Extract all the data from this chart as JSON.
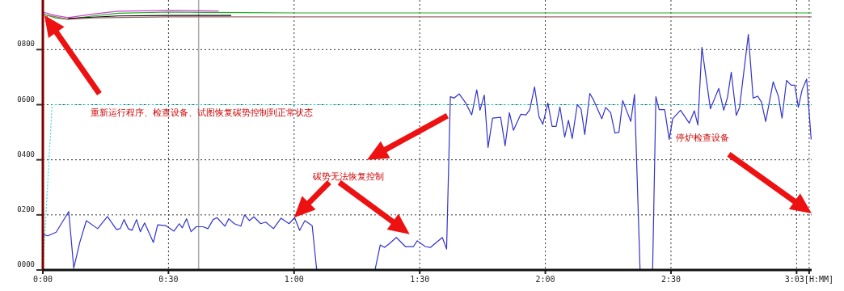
{
  "chart_data": {
    "type": "line",
    "xlim": [
      0,
      3.06
    ],
    "ylim": [
      0,
      980
    ],
    "xticks": [
      {
        "value": 0,
        "label": "0:00"
      },
      {
        "value": 0.5,
        "label": "0:30"
      },
      {
        "value": 1,
        "label": "1:00"
      },
      {
        "value": 1.5,
        "label": "1:30"
      },
      {
        "value": 2,
        "label": "2:00"
      },
      {
        "value": 2.5,
        "label": "2:30"
      },
      {
        "value": 3,
        "label": null
      },
      {
        "value": 3.05,
        "label": "3:03[H:MM]"
      }
    ],
    "yticks": [
      {
        "value": 0,
        "label": "0000"
      },
      {
        "value": 200,
        "label": "0200"
      },
      {
        "value": 400,
        "label": "0400"
      },
      {
        "value": 600,
        "label": "0600"
      },
      {
        "value": 800,
        "label": "0800"
      }
    ],
    "grid": true,
    "series": [
      {
        "color": "#22aa22",
        "x": [
          0,
          0.05,
          0.1,
          0.2,
          0.3,
          0.5,
          0.8,
          1.0,
          3.06
        ],
        "values": [
          930,
          915,
          910,
          922,
          932,
          936,
          934,
          933,
          933
        ]
      },
      {
        "color": "#cc44cc",
        "x": [
          0,
          0.05,
          0.1,
          0.2,
          0.3,
          0.5,
          0.7
        ],
        "values": [
          936,
          924,
          916,
          929,
          939,
          942,
          940
        ]
      },
      {
        "color": "#000000",
        "x": [
          0.1,
          0.3,
          0.5,
          0.75
        ],
        "values": [
          913,
          922,
          924,
          924
        ]
      },
      {
        "color": "#996666",
        "x": [
          0.01,
          0.02,
          0.1,
          0.2,
          0.5,
          1,
          3.06
        ],
        "values": [
          900,
          925,
          910,
          915,
          919,
          919,
          919
        ]
      },
      {
        "color": "#33dddd",
        "line_style": "dotted",
        "x": [
          0,
          0.037,
          3.06
        ],
        "values": [
          0,
          600,
          600
        ]
      },
      {
        "color": "#3333cc",
        "x": [
          0,
          0.02,
          0.053,
          0.103,
          0.123,
          0.147,
          0.173,
          0.218,
          0.257,
          0.293,
          0.308,
          0.323,
          0.34,
          0.355,
          0.373,
          0.388,
          0.405,
          0.44,
          0.457,
          0.49,
          0.522,
          0.543,
          0.555,
          0.572,
          0.59,
          0.61,
          0.637,
          0.657,
          0.678,
          0.693,
          0.725,
          0.74,
          0.762,
          0.788,
          0.803,
          0.822,
          0.84,
          0.867,
          0.887,
          0.918,
          0.948,
          0.98,
          1.002,
          1.022,
          1.043,
          1.072,
          1.09,
          1.322,
          1.343,
          1.36,
          1.377,
          1.407,
          1.443,
          1.475,
          1.49,
          1.522,
          1.543,
          1.59,
          1.607,
          1.622,
          1.637,
          1.657,
          1.683,
          1.707,
          1.727,
          1.74,
          1.757,
          1.772,
          1.79,
          1.822,
          1.84,
          1.857,
          1.873,
          1.902,
          1.923,
          1.938,
          1.957,
          1.975,
          1.99,
          2.01,
          2.027,
          2.043,
          2.058,
          2.077,
          2.092,
          2.107,
          2.127,
          2.142,
          2.157,
          2.177,
          2.193,
          2.225,
          2.24,
          2.26,
          2.277,
          2.293,
          2.308,
          2.34,
          2.355,
          2.377,
          2.427,
          2.44,
          2.453,
          2.475,
          2.493,
          2.507,
          2.538,
          2.573,
          2.593,
          2.607,
          2.623,
          2.657,
          2.69,
          2.71,
          2.725,
          2.74,
          2.76,
          2.773,
          2.808,
          2.827,
          2.845,
          2.86,
          2.877,
          2.907,
          2.928,
          2.942,
          2.96,
          2.978,
          2.993,
          3.007,
          3.022,
          3.04,
          3.058
        ],
        "values": [
          129,
          124,
          137,
          212,
          7,
          100,
          179,
          150,
          194,
          147,
          150,
          183,
          150,
          144,
          183,
          139,
          171,
          100,
          164,
          161,
          141,
          168,
          153,
          186,
          139,
          157,
          157,
          150,
          183,
          190,
          159,
          186,
          168,
          159,
          200,
          179,
          193,
          168,
          174,
          150,
          188,
          168,
          190,
          144,
          179,
          161,
          0,
          0,
          91,
          82,
          94,
          118,
          85,
          85,
          106,
          85,
          82,
          118,
          76,
          629,
          624,
          639,
          606,
          563,
          654,
          580,
          635,
          445,
          551,
          554,
          451,
          571,
          507,
          565,
          563,
          582,
          664,
          556,
          529,
          606,
          521,
          521,
          592,
          482,
          543,
          477,
          600,
          585,
          492,
          641,
          615,
          549,
          590,
          571,
          497,
          500,
          615,
          539,
          637,
          0,
          0,
          629,
          582,
          582,
          474,
          549,
          580,
          533,
          578,
          526,
          808,
          585,
          659,
          580,
          627,
          718,
          561,
          590,
          855,
          624,
          631,
          610,
          539,
          683,
          629,
          551,
          688,
          671,
          671,
          590,
          654,
          693,
          474
        ]
      }
    ],
    "ref_lines": [
      {
        "axis": "x",
        "value": 0.62,
        "color": "#aaaaaa"
      }
    ],
    "annotations": [
      "重新运行程序、检查设备、试图恢复碳势控制到正常状态",
      "碳势无法恢复控制",
      "停炉检查设备"
    ]
  }
}
